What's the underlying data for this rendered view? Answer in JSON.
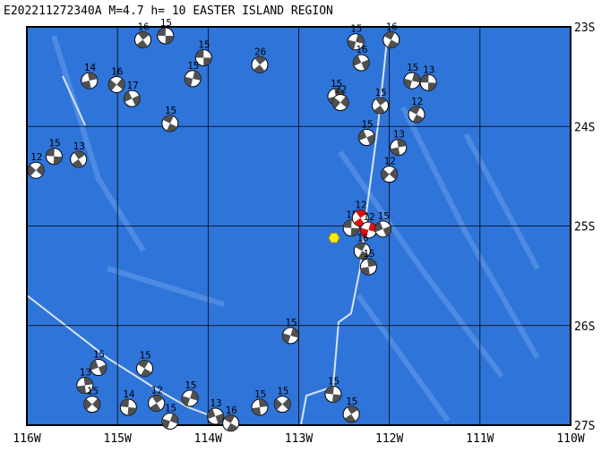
{
  "map": {
    "title": "E202211272340A M=4.7 h= 10 EASTER ISLAND REGION",
    "xlim": [
      -116,
      -110
    ],
    "ylim": [
      -27,
      -23
    ],
    "xticks": [
      {
        "value": -116,
        "label": "116W"
      },
      {
        "value": -115,
        "label": "115W"
      },
      {
        "value": -114,
        "label": "114W"
      },
      {
        "value": -113,
        "label": "113W"
      },
      {
        "value": -112,
        "label": "112W"
      },
      {
        "value": -111,
        "label": "111W"
      },
      {
        "value": -110,
        "label": "110W"
      }
    ],
    "yticks": [
      {
        "value": -23,
        "label": "23S"
      },
      {
        "value": -24,
        "label": "24S"
      },
      {
        "value": -25,
        "label": "25S"
      },
      {
        "value": -26,
        "label": "26S"
      },
      {
        "value": -27,
        "label": "27S"
      }
    ],
    "grid": true,
    "ball_color": "#505050",
    "epicenter": {
      "lon": -112.61,
      "lat": -25.12,
      "color": "#ffee00"
    },
    "events": [
      {
        "lon": -114.05,
        "lat": -23.31,
        "depth": 15
      },
      {
        "lon": -113.43,
        "lat": -23.38,
        "depth": 26
      },
      {
        "lon": -114.17,
        "lat": -23.52,
        "depth": 15
      },
      {
        "lon": -114.84,
        "lat": -23.72,
        "depth": 17
      },
      {
        "lon": -114.42,
        "lat": -23.97,
        "depth": 15
      },
      {
        "lon": -115.31,
        "lat": -23.54,
        "depth": 14
      },
      {
        "lon": -115.01,
        "lat": -23.58,
        "depth": 16
      },
      {
        "lon": -114.47,
        "lat": -23.09,
        "depth": 15
      },
      {
        "lon": -114.72,
        "lat": -23.13,
        "depth": 16
      },
      {
        "lon": -112.37,
        "lat": -23.15,
        "depth": 15
      },
      {
        "lon": -112.31,
        "lat": -23.36,
        "depth": 16
      },
      {
        "lon": -111.98,
        "lat": -23.13,
        "depth": 16
      },
      {
        "lon": -112.59,
        "lat": -23.7,
        "depth": 15
      },
      {
        "lon": -112.54,
        "lat": -23.76,
        "depth": 22
      },
      {
        "lon": -111.57,
        "lat": -23.56,
        "depth": 13
      },
      {
        "lon": -112.1,
        "lat": -23.79,
        "depth": 15
      },
      {
        "lon": -111.75,
        "lat": -23.54,
        "depth": 15
      },
      {
        "lon": -112.25,
        "lat": -24.11,
        "depth": 15
      },
      {
        "lon": -111.7,
        "lat": -23.88,
        "depth": 12
      },
      {
        "lon": -111.9,
        "lat": -24.21,
        "depth": 13
      },
      {
        "lon": -112.0,
        "lat": -24.48,
        "depth": 12
      },
      {
        "lon": -112.42,
        "lat": -25.02,
        "depth": 15
      },
      {
        "lon": -112.32,
        "lat": -24.92,
        "depth": 12,
        "color": "#e01010"
      },
      {
        "lon": -112.23,
        "lat": -25.04,
        "depth": 12,
        "color": "#e01010"
      },
      {
        "lon": -112.07,
        "lat": -25.03,
        "depth": 15
      },
      {
        "lon": -112.3,
        "lat": -25.25,
        "depth": 16
      },
      {
        "lon": -112.23,
        "lat": -25.41,
        "depth": 15
      },
      {
        "lon": -115.9,
        "lat": -24.44,
        "depth": 12
      },
      {
        "lon": -115.7,
        "lat": -24.3,
        "depth": 15
      },
      {
        "lon": -115.43,
        "lat": -24.33,
        "depth": 13
      },
      {
        "lon": -113.09,
        "lat": -26.1,
        "depth": 15
      },
      {
        "lon": -115.21,
        "lat": -26.42,
        "depth": 15
      },
      {
        "lon": -114.7,
        "lat": -26.43,
        "depth": 15
      },
      {
        "lon": -115.36,
        "lat": -26.6,
        "depth": 13
      },
      {
        "lon": -115.28,
        "lat": -26.79,
        "depth": 15
      },
      {
        "lon": -114.88,
        "lat": -26.82,
        "depth": 14
      },
      {
        "lon": -114.57,
        "lat": -26.78,
        "depth": 12
      },
      {
        "lon": -114.2,
        "lat": -26.73,
        "depth": 15
      },
      {
        "lon": -113.92,
        "lat": -26.91,
        "depth": 13
      },
      {
        "lon": -113.75,
        "lat": -26.98,
        "depth": 16
      },
      {
        "lon": -113.43,
        "lat": -26.82,
        "depth": 15
      },
      {
        "lon": -113.18,
        "lat": -26.79,
        "depth": 15
      },
      {
        "lon": -112.62,
        "lat": -26.69,
        "depth": 15
      },
      {
        "lon": -112.42,
        "lat": -26.89,
        "depth": 15
      },
      {
        "lon": -114.42,
        "lat": -26.96,
        "depth": 15
      }
    ]
  }
}
